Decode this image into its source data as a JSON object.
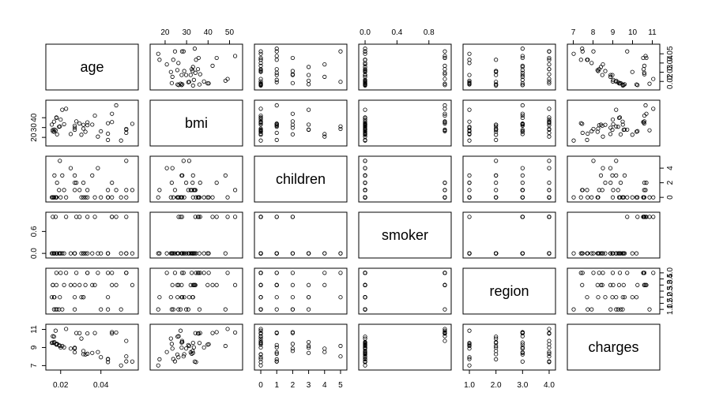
{
  "chart_data": {
    "type": "scatter_matrix",
    "variables": [
      {
        "name": "age",
        "lim": [
          0.0142,
          0.057
        ],
        "xticks": [
          0.02,
          0.04
        ],
        "yticks": [
          0.02,
          0.03,
          0.04,
          0.05
        ]
      },
      {
        "name": "bmi",
        "lim": [
          14.5,
          54.6
        ],
        "xticks": [
          20,
          30,
          40,
          50
        ],
        "yticks": [
          20,
          30,
          40
        ]
      },
      {
        "name": "children",
        "lim": [
          -0.2,
          5.2
        ],
        "xticks": [
          0,
          1,
          2,
          3,
          4,
          5
        ],
        "yticks": [
          0,
          2,
          4
        ]
      },
      {
        "name": "smoker",
        "lim": [
          -0.04,
          1.04
        ],
        "xticks": [
          {
            "value": 0,
            "label": "0.0"
          },
          {
            "value": 0.4,
            "label": "0.4"
          },
          {
            "value": 0.8,
            "label": "0.8"
          }
        ],
        "yticks": [
          {
            "value": 0,
            "label": "0.0"
          },
          {
            "value": 0.6,
            "label": "0.6"
          }
        ]
      },
      {
        "name": "region",
        "lim": [
          0.88,
          4.12
        ],
        "xticks": [
          {
            "value": 1,
            "label": "1.0"
          },
          {
            "value": 2,
            "label": "2.0"
          },
          {
            "value": 3,
            "label": "3.0"
          },
          {
            "value": 4,
            "label": "4.0"
          }
        ],
        "yticks": [
          {
            "value": 1,
            "label": "1.0"
          },
          {
            "value": 1.5,
            "label": "1.5"
          },
          {
            "value": 2,
            "label": "2.0"
          },
          {
            "value": 2.5,
            "label": "2.5"
          },
          {
            "value": 3,
            "label": "3.0"
          },
          {
            "value": 3.5,
            "label": "3.5"
          },
          {
            "value": 4,
            "label": "4.0"
          }
        ]
      },
      {
        "name": "charges",
        "lim": [
          6.86,
          11.22
        ],
        "xticks": [
          7,
          8,
          9,
          10,
          11
        ],
        "yticks": [
          7,
          9,
          11
        ]
      }
    ],
    "observations": [
      [
        0.0526,
        27.9,
        0,
        1,
        4,
        9.73
      ],
      [
        0.0556,
        33.8,
        1,
        0,
        3,
        7.45
      ],
      [
        0.0357,
        33.0,
        3,
        0,
        3,
        8.4
      ],
      [
        0.0303,
        22.7,
        0,
        0,
        2,
        9.99
      ],
      [
        0.0313,
        28.9,
        0,
        0,
        2,
        8.26
      ],
      [
        0.0323,
        25.7,
        0,
        0,
        3,
        8.23
      ],
      [
        0.0217,
        33.4,
        1,
        0,
        3,
        9.02
      ],
      [
        0.027,
        27.7,
        3,
        0,
        2,
        8.98
      ],
      [
        0.027,
        29.8,
        2,
        0,
        1,
        8.89
      ],
      [
        0.0167,
        25.8,
        0,
        0,
        2,
        10.2
      ],
      [
        0.04,
        26.2,
        0,
        0,
        1,
        7.93
      ],
      [
        0.0161,
        26.3,
        0,
        1,
        3,
        10.25
      ],
      [
        0.0435,
        34.4,
        0,
        0,
        4,
        7.39
      ],
      [
        0.0179,
        39.8,
        0,
        0,
        3,
        9.32
      ],
      [
        0.037,
        42.1,
        0,
        1,
        3,
        10.6
      ],
      [
        0.0526,
        24.6,
        1,
        0,
        4,
        7.47
      ],
      [
        0.0192,
        30.8,
        1,
        0,
        1,
        9.27
      ],
      [
        0.0435,
        23.8,
        0,
        0,
        1,
        7.73
      ],
      [
        0.0179,
        40.3,
        0,
        0,
        4,
        9.36
      ],
      [
        0.0333,
        35.3,
        0,
        1,
        4,
        10.56
      ],
      [
        0.0167,
        36.0,
        0,
        0,
        1,
        9.5
      ],
      [
        0.0333,
        32.4,
        1,
        0,
        4,
        8.31
      ],
      [
        0.0294,
        34.1,
        1,
        1,
        3,
        10.59
      ],
      [
        0.027,
        31.9,
        1,
        0,
        3,
        8.47
      ],
      [
        0.0169,
        28.0,
        3,
        0,
        2,
        9.6
      ],
      [
        0.0161,
        27.7,
        0,
        0,
        3,
        9.55
      ],
      [
        0.0182,
        23.1,
        2,
        0,
        1,
        9.4
      ],
      [
        0.0313,
        32.8,
        2,
        0,
        2,
        8.62
      ],
      [
        0.0435,
        17.4,
        1,
        0,
        2,
        7.7
      ],
      [
        0.0278,
        36.3,
        2,
        1,
        4,
        10.6
      ],
      [
        0.0455,
        35.6,
        0,
        1,
        4,
        10.54
      ],
      [
        0.0526,
        28.6,
        5,
        0,
        4,
        8.02
      ],
      [
        0.02,
        38.1,
        0,
        0,
        4,
        9.0
      ],
      [
        0.0156,
        33.0,
        0,
        0,
        2,
        9.51
      ],
      [
        0.0476,
        52.6,
        1,
        1,
        3,
        10.66
      ],
      [
        0.0208,
        48.1,
        3,
        0,
        1,
        9.17
      ],
      [
        0.025,
        23.4,
        4,
        0,
        3,
        8.88
      ],
      [
        0.0385,
        20.8,
        4,
        0,
        4,
        8.5
      ],
      [
        0.0196,
        31.2,
        5,
        0,
        2,
        9.17
      ],
      [
        0.0175,
        27.2,
        0,
        1,
        1,
        10.86
      ],
      [
        0.0455,
        44.0,
        2,
        1,
        3,
        10.7
      ],
      [
        0.05,
        16.8,
        0,
        0,
        1,
        7.02
      ],
      [
        0.0227,
        49.1,
        0,
        1,
        4,
        11.05
      ]
    ]
  }
}
